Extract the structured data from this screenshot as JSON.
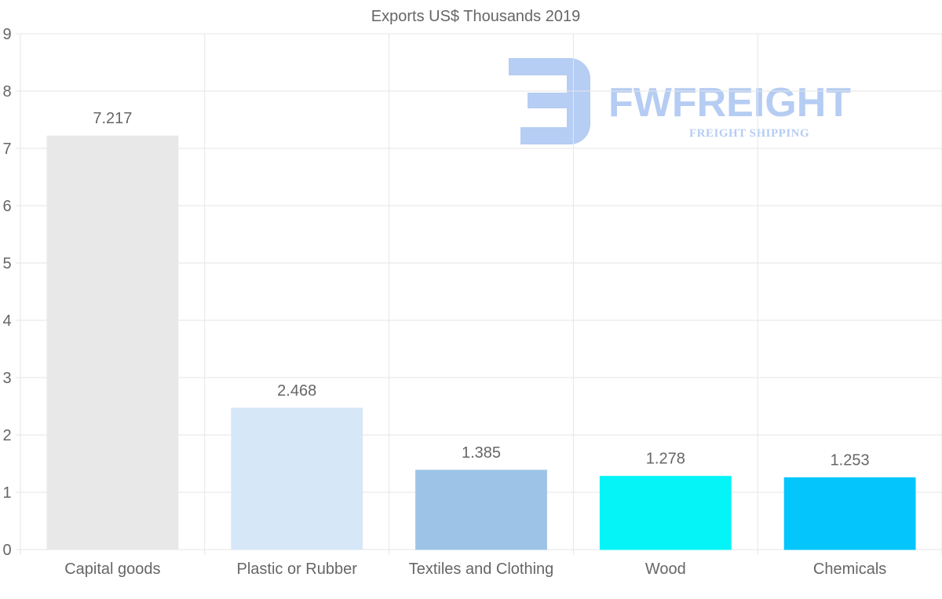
{
  "chart_data": {
    "type": "bar",
    "title": "Exports US$ Thousands 2019",
    "categories": [
      "Capital goods",
      "Plastic or Rubber",
      "Textiles and Clothing",
      "Wood",
      "Chemicals"
    ],
    "values": [
      7.217,
      2.468,
      1.385,
      1.278,
      1.253
    ],
    "value_labels": [
      "7.217",
      "2.468",
      "1.385",
      "1.278",
      "1.253"
    ],
    "bar_colors": [
      "#e8e8e8",
      "#d6e7f8",
      "#9dc4e7",
      "#05f4f7",
      "#05c6fc"
    ],
    "ylim": [
      0,
      9
    ],
    "yticks": [
      0,
      1,
      2,
      3,
      4,
      5,
      6,
      7,
      8,
      9
    ],
    "xlabel": "",
    "ylabel": "",
    "grid": true,
    "legend": "none"
  },
  "watermark": {
    "brand": "FWFREIGHT",
    "tagline": "FREIGHT SHIPPING",
    "color": "#a9c4f2"
  },
  "colors": {
    "grid": "#e6e6e6",
    "text": "#666666"
  }
}
